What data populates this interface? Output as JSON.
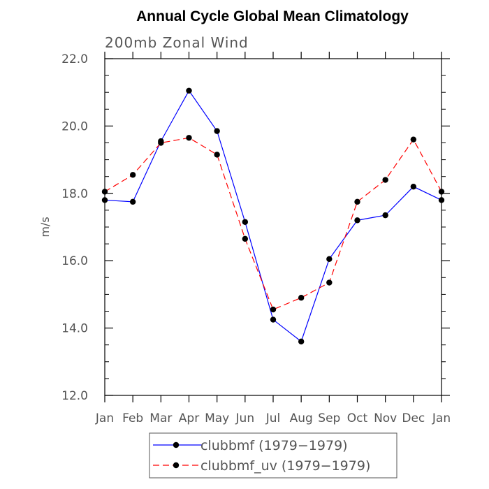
{
  "chart_data": {
    "type": "line",
    "title": "Annual Cycle Global Mean Climatology",
    "subtitle": "200mb Zonal Wind",
    "xlabel": "",
    "ylabel": "m/s",
    "categories": [
      "Jan",
      "Feb",
      "Mar",
      "Apr",
      "May",
      "Jun",
      "Jul",
      "Aug",
      "Sep",
      "Oct",
      "Nov",
      "Dec",
      "Jan"
    ],
    "ylim": [
      12.0,
      22.0
    ],
    "y_ticks": [
      "12.0",
      "14.0",
      "16.0",
      "18.0",
      "20.0",
      "22.0"
    ],
    "grid": false,
    "legend_position": "bottom",
    "series": [
      {
        "name": "clubbmf (1979−1979)",
        "color": "#0000ff",
        "dash": "solid",
        "marker": "filled-circle",
        "values": [
          17.8,
          17.75,
          19.55,
          21.05,
          19.85,
          17.15,
          14.25,
          13.6,
          16.05,
          17.2,
          17.35,
          18.2,
          17.8
        ]
      },
      {
        "name": "clubbmf_uv (1979−1979)",
        "color": "#ff0000",
        "dash": "dashed",
        "marker": "filled-circle",
        "values": [
          18.05,
          18.55,
          19.5,
          19.65,
          19.15,
          16.65,
          14.55,
          14.9,
          15.35,
          17.75,
          18.4,
          19.6,
          18.05
        ]
      }
    ]
  }
}
